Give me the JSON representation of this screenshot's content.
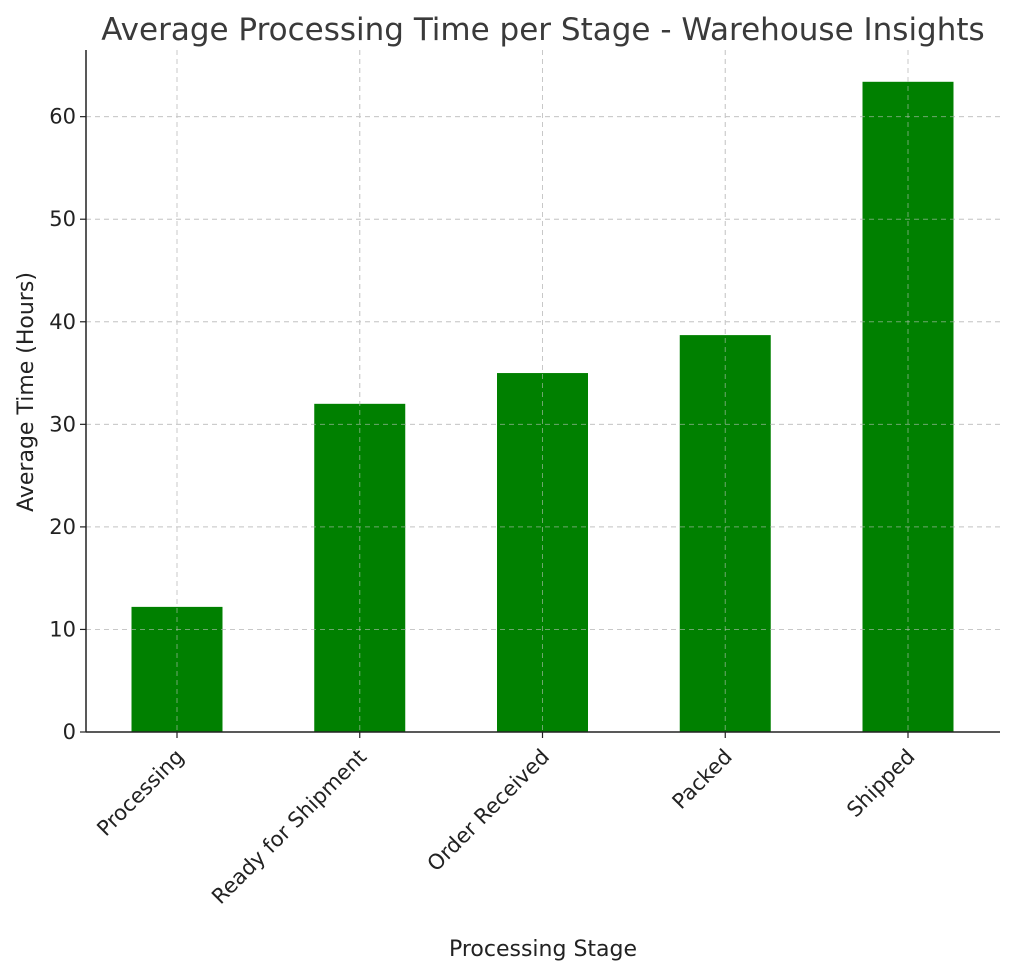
{
  "chart_data": {
    "type": "bar",
    "title": "Average Processing Time per Stage - Warehouse Insights",
    "xlabel": "Processing Stage",
    "ylabel": "Average Time (Hours)",
    "categories": [
      "Processing",
      "Ready for Shipment",
      "Order Received",
      "Packed",
      "Shipped"
    ],
    "values": [
      12.2,
      32.0,
      35.0,
      38.7,
      63.4
    ],
    "ylim": [
      0,
      66.5
    ],
    "yticks": [
      0,
      10,
      20,
      30,
      40,
      50,
      60
    ],
    "bar_color": "#008000",
    "grid": true
  }
}
